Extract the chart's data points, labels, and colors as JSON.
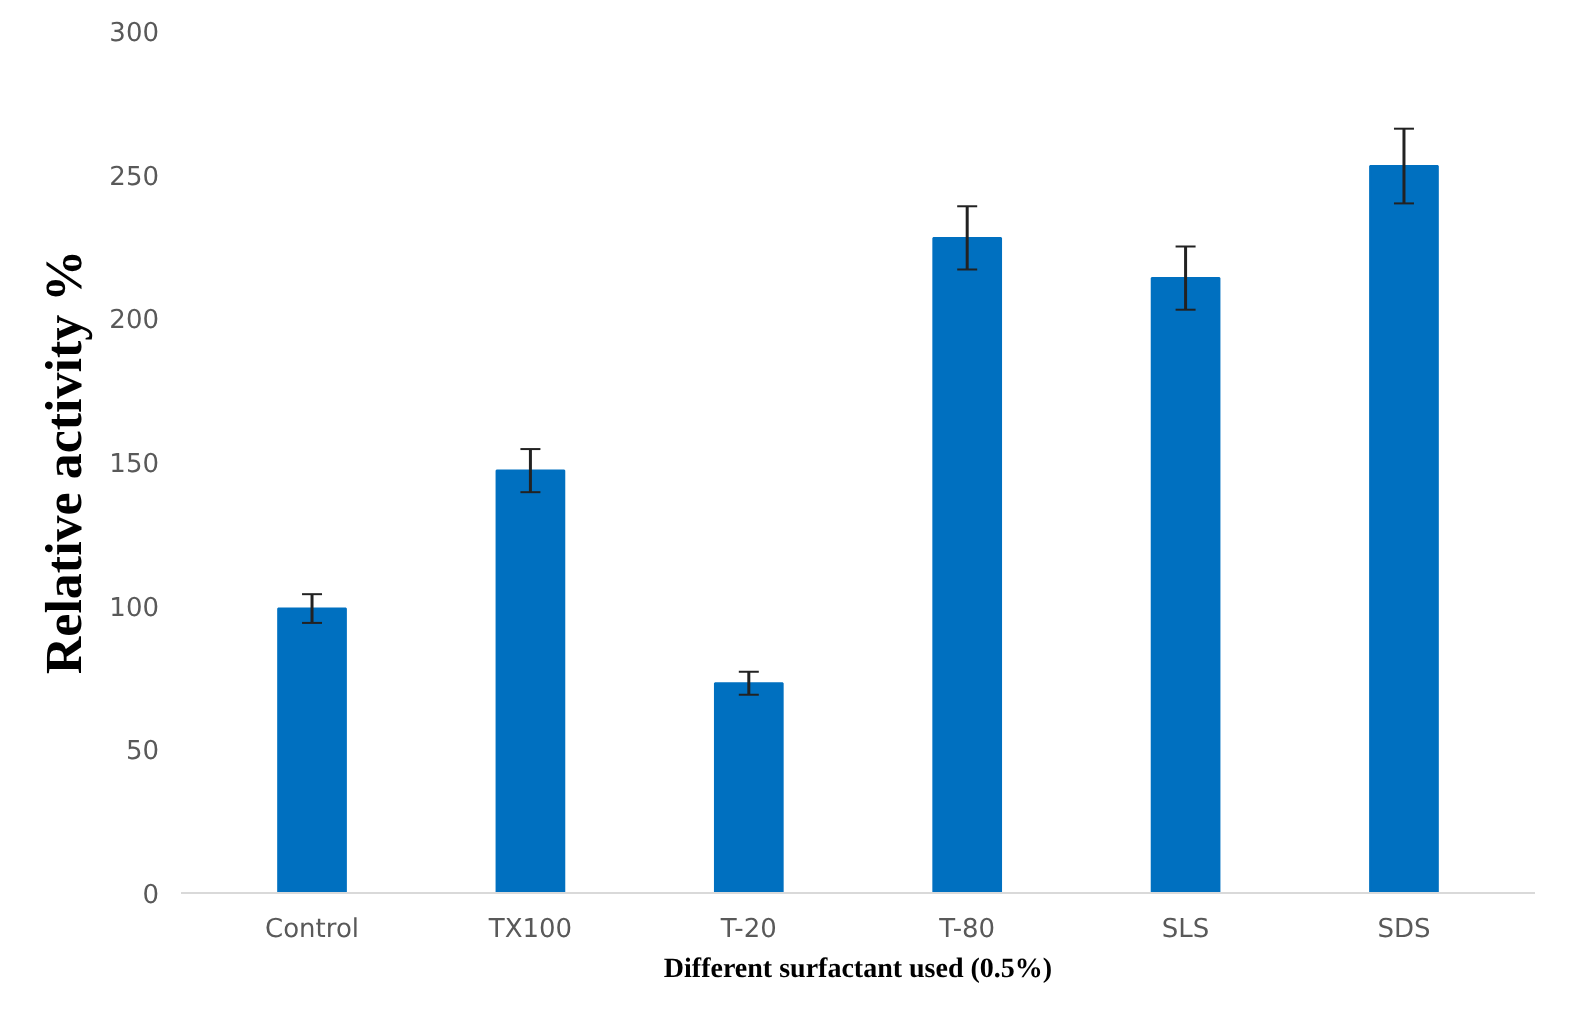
{
  "chart_data": {
    "type": "bar",
    "xlabel": "Different surfactant used (0.5%)",
    "ylabel": "Relative activity %",
    "categories": [
      "Control",
      "TX100",
      "T-20",
      "T-80",
      "SLS",
      "SDS"
    ],
    "values": [
      99,
      147,
      73,
      228,
      214,
      253
    ],
    "errors": [
      5,
      7.5,
      4,
      11,
      11,
      13
    ],
    "color": "#0070c0",
    "ylim": [
      0,
      300
    ],
    "yticks": [
      0,
      50,
      100,
      150,
      200,
      250,
      300
    ],
    "grid": false
  }
}
